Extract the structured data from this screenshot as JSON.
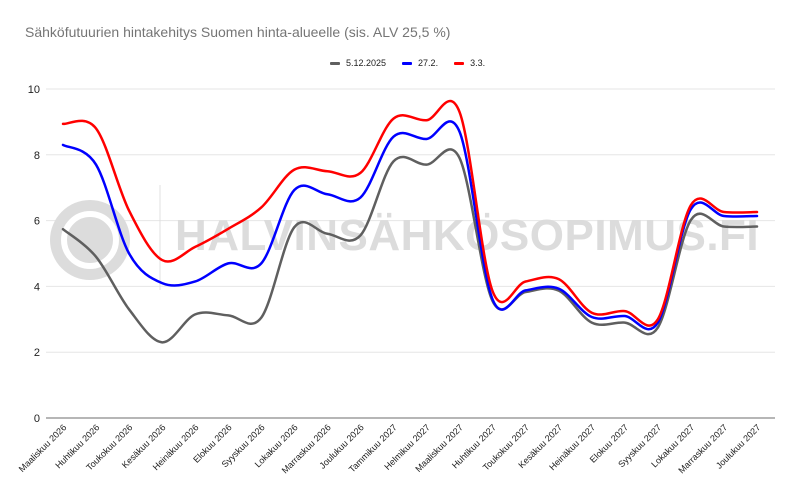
{
  "chart_data": {
    "type": "line",
    "title": "Sähköfutuurien hintakehitys Suomen hinta-alueelle (sis. ALV 25,5 %)",
    "xlabel": "",
    "ylabel": "",
    "ylim": [
      0,
      10
    ],
    "yticks": [
      0,
      2,
      4,
      6,
      8,
      10
    ],
    "grid": true,
    "legend_position": "top",
    "categories": [
      "Maaliskuu 2026",
      "Huhtikuu 2026",
      "Toukokuu 2026",
      "Kesäkuu 2026",
      "Heinäkuu 2026",
      "Elokuu 2026",
      "Syyskuu 2026",
      "Lokakuu 2026",
      "Marraskuu 2026",
      "Joulukuu 2026",
      "Tammikuu 2027",
      "Helmikuu 2027",
      "Maaliskuu 2027",
      "Huhtikuu 2027",
      "Toukokuu 2027",
      "Kesäkuu 2027",
      "Heinäkuu 2027",
      "Elokuu 2027",
      "Syyskuu 2027",
      "Lokakuu 2027",
      "Marraskuu 2027",
      "Joulukuu 2027"
    ],
    "series": [
      {
        "name": "5.12.2025",
        "color": "#5f5f5f",
        "values": [
          5.74,
          4.9,
          3.3,
          2.3,
          3.15,
          3.12,
          3.05,
          5.8,
          5.6,
          5.55,
          7.8,
          7.7,
          7.9,
          3.55,
          3.83,
          3.87,
          2.9,
          2.9,
          2.75,
          6.02,
          5.82,
          5.82
        ]
      },
      {
        "name": "27.2.",
        "color": "#0000ff",
        "values": [
          8.3,
          7.7,
          5.0,
          4.1,
          4.15,
          4.7,
          4.7,
          6.93,
          6.8,
          6.7,
          8.55,
          8.48,
          8.7,
          3.6,
          3.88,
          3.93,
          3.07,
          3.1,
          2.9,
          6.35,
          6.14,
          6.14
        ]
      },
      {
        "name": "3.3.",
        "color": "#ff0000",
        "values": [
          8.94,
          8.8,
          6.3,
          4.8,
          5.2,
          5.75,
          6.4,
          7.55,
          7.5,
          7.45,
          9.1,
          9.05,
          9.3,
          3.85,
          4.15,
          4.22,
          3.2,
          3.25,
          3.0,
          6.47,
          6.26,
          6.26
        ]
      }
    ]
  },
  "watermark": {
    "text": "HALVINSÄHKÖSOPIMUS.FI"
  }
}
